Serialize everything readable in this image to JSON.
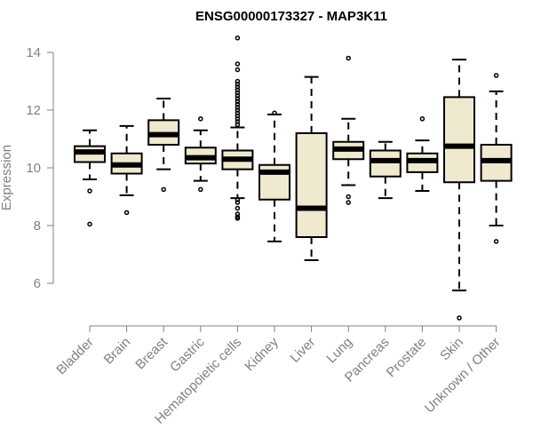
{
  "chart_data": {
    "type": "boxplot",
    "title": "ENSG00000173327 - MAP3K11",
    "xlabel": "",
    "ylabel": "Expression",
    "ylim": [
      4.5,
      14.5
    ],
    "yticks": [
      6,
      8,
      10,
      12,
      14
    ],
    "box_fill": "#efe9d0",
    "stroke_color": "#000000",
    "axis_color": "#808080",
    "categories": [
      "Bladder",
      "Brain",
      "Breast",
      "Gastric",
      "Hematopoietic cells",
      "Kidney",
      "Liver",
      "Lung",
      "Pancreas",
      "Prostate",
      "Skin",
      "Unknown / Other"
    ],
    "boxes": [
      {
        "name": "Bladder",
        "whisker_low": 9.6,
        "q1": 10.2,
        "median": 10.55,
        "q3": 10.75,
        "whisker_high": 11.3,
        "outliers": [
          9.2,
          8.05
        ]
      },
      {
        "name": "Brain",
        "whisker_low": 9.05,
        "q1": 9.8,
        "median": 10.1,
        "q3": 10.5,
        "whisker_high": 11.45,
        "outliers": [
          8.45
        ]
      },
      {
        "name": "Breast",
        "whisker_low": 9.95,
        "q1": 10.8,
        "median": 11.15,
        "q3": 11.65,
        "whisker_high": 12.4,
        "outliers": [
          9.25
        ]
      },
      {
        "name": "Gastric",
        "whisker_low": 9.55,
        "q1": 10.15,
        "median": 10.35,
        "q3": 10.7,
        "whisker_high": 11.3,
        "outliers": [
          11.7,
          9.25
        ]
      },
      {
        "name": "Hematopoietic cells",
        "whisker_low": 8.95,
        "q1": 9.95,
        "median": 10.3,
        "q3": 10.6,
        "whisker_high": 11.4,
        "outliers": [
          14.5,
          13.6,
          13.4,
          13.0,
          12.9,
          12.8,
          12.7,
          12.6,
          12.5,
          12.4,
          12.3,
          12.2,
          12.1,
          12.0,
          11.9,
          11.8,
          11.7,
          11.6,
          11.5,
          8.9,
          8.8,
          8.6,
          8.4,
          8.3,
          8.25
        ]
      },
      {
        "name": "Kidney",
        "whisker_low": 7.45,
        "q1": 8.9,
        "median": 9.85,
        "q3": 10.1,
        "whisker_high": 11.85,
        "outliers": [
          11.9
        ]
      },
      {
        "name": "Liver",
        "whisker_low": 6.8,
        "q1": 7.6,
        "median": 8.6,
        "q3": 11.2,
        "whisker_high": 13.15,
        "outliers": []
      },
      {
        "name": "Lung",
        "whisker_low": 9.4,
        "q1": 10.3,
        "median": 10.65,
        "q3": 10.9,
        "whisker_high": 11.7,
        "outliers": [
          13.8,
          9.0,
          8.8
        ]
      },
      {
        "name": "Pancreas",
        "whisker_low": 8.95,
        "q1": 9.7,
        "median": 10.25,
        "q3": 10.6,
        "whisker_high": 10.9,
        "outliers": []
      },
      {
        "name": "Prostate",
        "whisker_low": 9.2,
        "q1": 9.85,
        "median": 10.25,
        "q3": 10.5,
        "whisker_high": 10.95,
        "outliers": [
          11.7
        ]
      },
      {
        "name": "Skin",
        "whisker_low": 5.75,
        "q1": 9.5,
        "median": 10.75,
        "q3": 12.45,
        "whisker_high": 13.75,
        "outliers": [
          4.8
        ]
      },
      {
        "name": "Unknown / Other",
        "whisker_low": 8.0,
        "q1": 9.55,
        "median": 10.25,
        "q3": 10.8,
        "whisker_high": 12.65,
        "outliers": [
          13.2,
          7.45
        ]
      }
    ]
  }
}
